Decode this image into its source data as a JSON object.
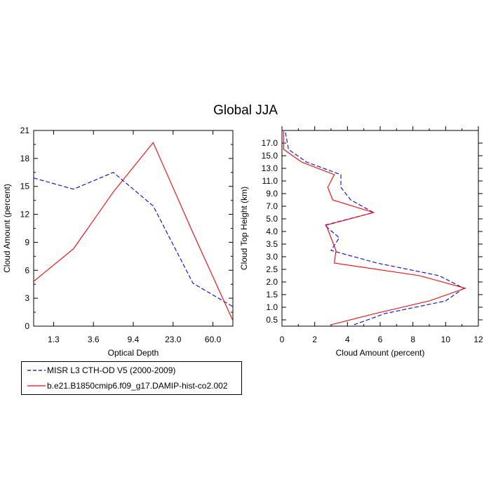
{
  "title": "Global JJA",
  "legend": {
    "items": [
      {
        "label": "MISR L3 CTH-OD V5 (2000-2009)",
        "color": "#0000ff",
        "style": "dashed"
      },
      {
        "label": "b.e21.B1850cmip6.f09_g17.DAMIP-hist-co2.002",
        "color": "#ff0000",
        "style": "solid"
      }
    ]
  },
  "chart_data": [
    {
      "type": "line",
      "title": "",
      "xlabel": "Optical Depth",
      "ylabel": "Cloud Amount (percent)",
      "categories": [
        "1.3",
        "3.6",
        "9.4",
        "23.0",
        "60.0"
      ],
      "x_tick_positions": [
        0.5,
        1.5,
        2.5,
        3.5,
        4.5
      ],
      "x": [
        0,
        1,
        2,
        3,
        4,
        5
      ],
      "xlim": [
        0,
        5
      ],
      "ylim": [
        0,
        21
      ],
      "yticks": [
        0,
        3,
        6,
        9,
        12,
        15,
        18,
        21
      ],
      "series": [
        {
          "name": "MISR L3 CTH-OD V5 (2000-2009)",
          "color": "#0000ff",
          "style": "dashed",
          "values": [
            15.9,
            14.7,
            16.5,
            12.9,
            4.6,
            2.1
          ]
        },
        {
          "name": "b.e21.B1850cmip6.f09_g17.DAMIP-hist-co2.002",
          "color": "#ff0000",
          "style": "solid",
          "values": [
            4.8,
            8.3,
            14.4,
            19.7,
            10.0,
            0.6
          ]
        }
      ]
    },
    {
      "type": "line",
      "title": "",
      "xlabel": "Cloud Amount (percent)",
      "ylabel": "Cloud Top Height (km)",
      "xlim": [
        0,
        12
      ],
      "xticks": [
        0,
        2,
        4,
        6,
        8,
        10,
        12
      ],
      "ytick_labels": [
        "0.5",
        "1.0",
        "1.5",
        "2.0",
        "2.5",
        "3.0",
        "3.5",
        "4.0",
        "5.0",
        "7.0",
        "9.0",
        "11.0",
        "13.0",
        "15.0",
        "17.0"
      ],
      "y_levels": [
        0.25,
        0.75,
        1.25,
        1.75,
        2.25,
        2.75,
        3.25,
        3.75,
        4.5,
        6.0,
        8.0,
        10.0,
        12.0,
        14.0,
        16.0,
        17.5
      ],
      "series": [
        {
          "name": "MISR L3 CTH-OD V5 (2000-2009)",
          "color": "#0000ff",
          "style": "dashed",
          "x": [
            4.4,
            6.3,
            10.0,
            11.1,
            9.6,
            5.8,
            3.0,
            3.5,
            2.6,
            5.6,
            4.2,
            3.6,
            3.6,
            1.5,
            0.4,
            0.2
          ]
        },
        {
          "name": "b.e21.B1850cmip6.f09_g17.DAMIP-hist-co2.002",
          "color": "#ff0000",
          "style": "solid",
          "x": [
            3.0,
            5.7,
            9.0,
            11.2,
            8.4,
            3.2,
            3.3,
            3.0,
            2.7,
            5.6,
            3.1,
            2.8,
            3.2,
            1.2,
            0.1,
            0.1
          ]
        }
      ]
    }
  ]
}
